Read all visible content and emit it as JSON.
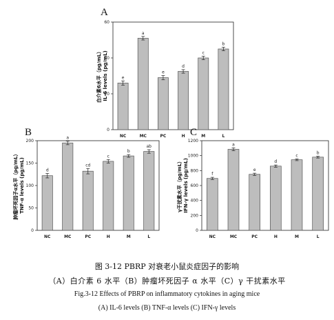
{
  "chart_data": [
    {
      "panel": "A",
      "type": "bar",
      "categories": [
        "NC",
        "MC",
        "PC",
        "H",
        "M",
        "L"
      ],
      "values": [
        26,
        51,
        29,
        32.5,
        40,
        45
      ],
      "errors": [
        1.2,
        1.0,
        1.2,
        1.0,
        1.0,
        1.0
      ],
      "significance": [
        "e",
        "a",
        "e",
        "d",
        "c",
        "b"
      ],
      "ylabel_cn": "白介素6水平（pg/mL）",
      "ylabel_en": "IL-6 levels (pg/mL)",
      "ylim": [
        0,
        60
      ],
      "yticks": [
        0,
        20,
        40,
        60
      ]
    },
    {
      "panel": "B",
      "type": "bar",
      "categories": [
        "NC",
        "MC",
        "PC",
        "H",
        "M",
        "L"
      ],
      "values": [
        122,
        195,
        132,
        154,
        166,
        176
      ],
      "errors": [
        5,
        4,
        6,
        4,
        3,
        4
      ],
      "significance": [
        "d",
        "a",
        "cd",
        "c",
        "b",
        "ab"
      ],
      "ylabel_cn": "肿瘤坏死因子α水平（pg/mL）",
      "ylabel_en": "TNF-α levels (pg/mL)",
      "ylim": [
        0,
        200
      ],
      "yticks": [
        0,
        50,
        100,
        150,
        200
      ]
    },
    {
      "panel": "C",
      "type": "bar",
      "categories": [
        "NC",
        "MC",
        "PC",
        "H",
        "M",
        "L"
      ],
      "values": [
        695,
        1085,
        750,
        860,
        945,
        980
      ],
      "errors": [
        15,
        20,
        15,
        15,
        12,
        12
      ],
      "significance": [
        "f",
        "a",
        "e",
        "d",
        "c",
        "b"
      ],
      "ylabel_cn": "γ干扰素水平（pg/mL）",
      "ylabel_en": "IFN-γ levels (pg/mL)",
      "ylim": [
        0,
        1200
      ],
      "yticks": [
        0,
        200,
        400,
        600,
        800,
        1000,
        1200
      ]
    }
  ],
  "caption": {
    "line1": "图 3-12 PBRP 对衰老小鼠炎症因子的影响",
    "line2": "（A）白介素 6 水平（B）肿瘤坏死因子 α 水平（C）γ 干扰素水平",
    "line3": "Fig.3-12 Effects of PBRP on inflammatory cytokines in aging mice",
    "line4": "(A) IL-6 levels (B) TNF-α levels (C) IFN-γ levels"
  },
  "colors": {
    "bar_fill": "#bdbdbd",
    "bar_stroke": "#555555",
    "axis": "#222222"
  }
}
